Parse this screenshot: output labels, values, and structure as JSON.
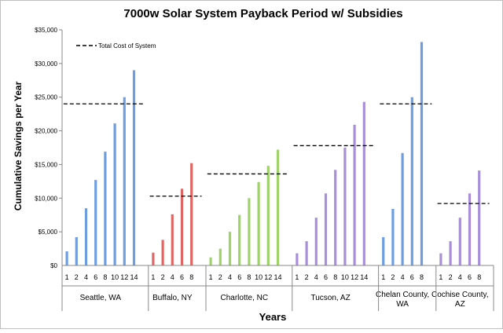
{
  "chart_data": {
    "type": "bar",
    "title": "7000w Solar System Payback Period w/ Subsidies",
    "xlabel": "Years",
    "ylabel": "Cumulative Savings per Year",
    "ylim": [
      0,
      35000
    ],
    "yticks": [
      "$0",
      "$5,000",
      "$10,000",
      "$15,000",
      "$20,000",
      "$25,000",
      "$30,000",
      "$35,000"
    ],
    "legend": {
      "label": "Total Cost of System",
      "placement": "top-left"
    },
    "groups": [
      {
        "location": "Seattle, WA",
        "color": "#6e9ee0",
        "years": [
          "1",
          "2",
          "4",
          "6",
          "8",
          "10",
          "12",
          "14"
        ],
        "values": [
          2100,
          4200,
          8500,
          12700,
          16900,
          21100,
          25000,
          29000
        ],
        "total_cost": 24000
      },
      {
        "location": "Buffalo, NY",
        "color": "#e06666",
        "years": [
          "1",
          "2",
          "4",
          "6",
          "8"
        ],
        "values": [
          1900,
          3800,
          7600,
          11400,
          15200
        ],
        "total_cost": 10300
      },
      {
        "location": "Charlotte, NC",
        "color": "#9fd36a",
        "years": [
          "1",
          "2",
          "4",
          "6",
          "8",
          "10",
          "12",
          "14"
        ],
        "values": [
          1200,
          2500,
          5000,
          7500,
          10000,
          12400,
          14800,
          17200
        ],
        "total_cost": 13600
      },
      {
        "location": "Tucson, AZ",
        "color": "#a98fd9",
        "years": [
          "1",
          "2",
          "4",
          "6",
          "8",
          "10",
          "12",
          "14"
        ],
        "values": [
          1800,
          3600,
          7100,
          10700,
          14200,
          17500,
          20900,
          24300
        ],
        "total_cost": 17800
      },
      {
        "location": "Chelan County, WA",
        "color": "#6e9ee0",
        "years": [
          "1",
          "2",
          "4",
          "6",
          "8"
        ],
        "values": [
          4200,
          8400,
          16700,
          25000,
          33200
        ],
        "total_cost": 24000
      },
      {
        "location": "Cochise County, AZ",
        "color": "#a98fd9",
        "years": [
          "1",
          "2",
          "4",
          "6",
          "8"
        ],
        "values": [
          1800,
          3600,
          7100,
          10700,
          14100
        ],
        "total_cost": 9200
      }
    ]
  }
}
